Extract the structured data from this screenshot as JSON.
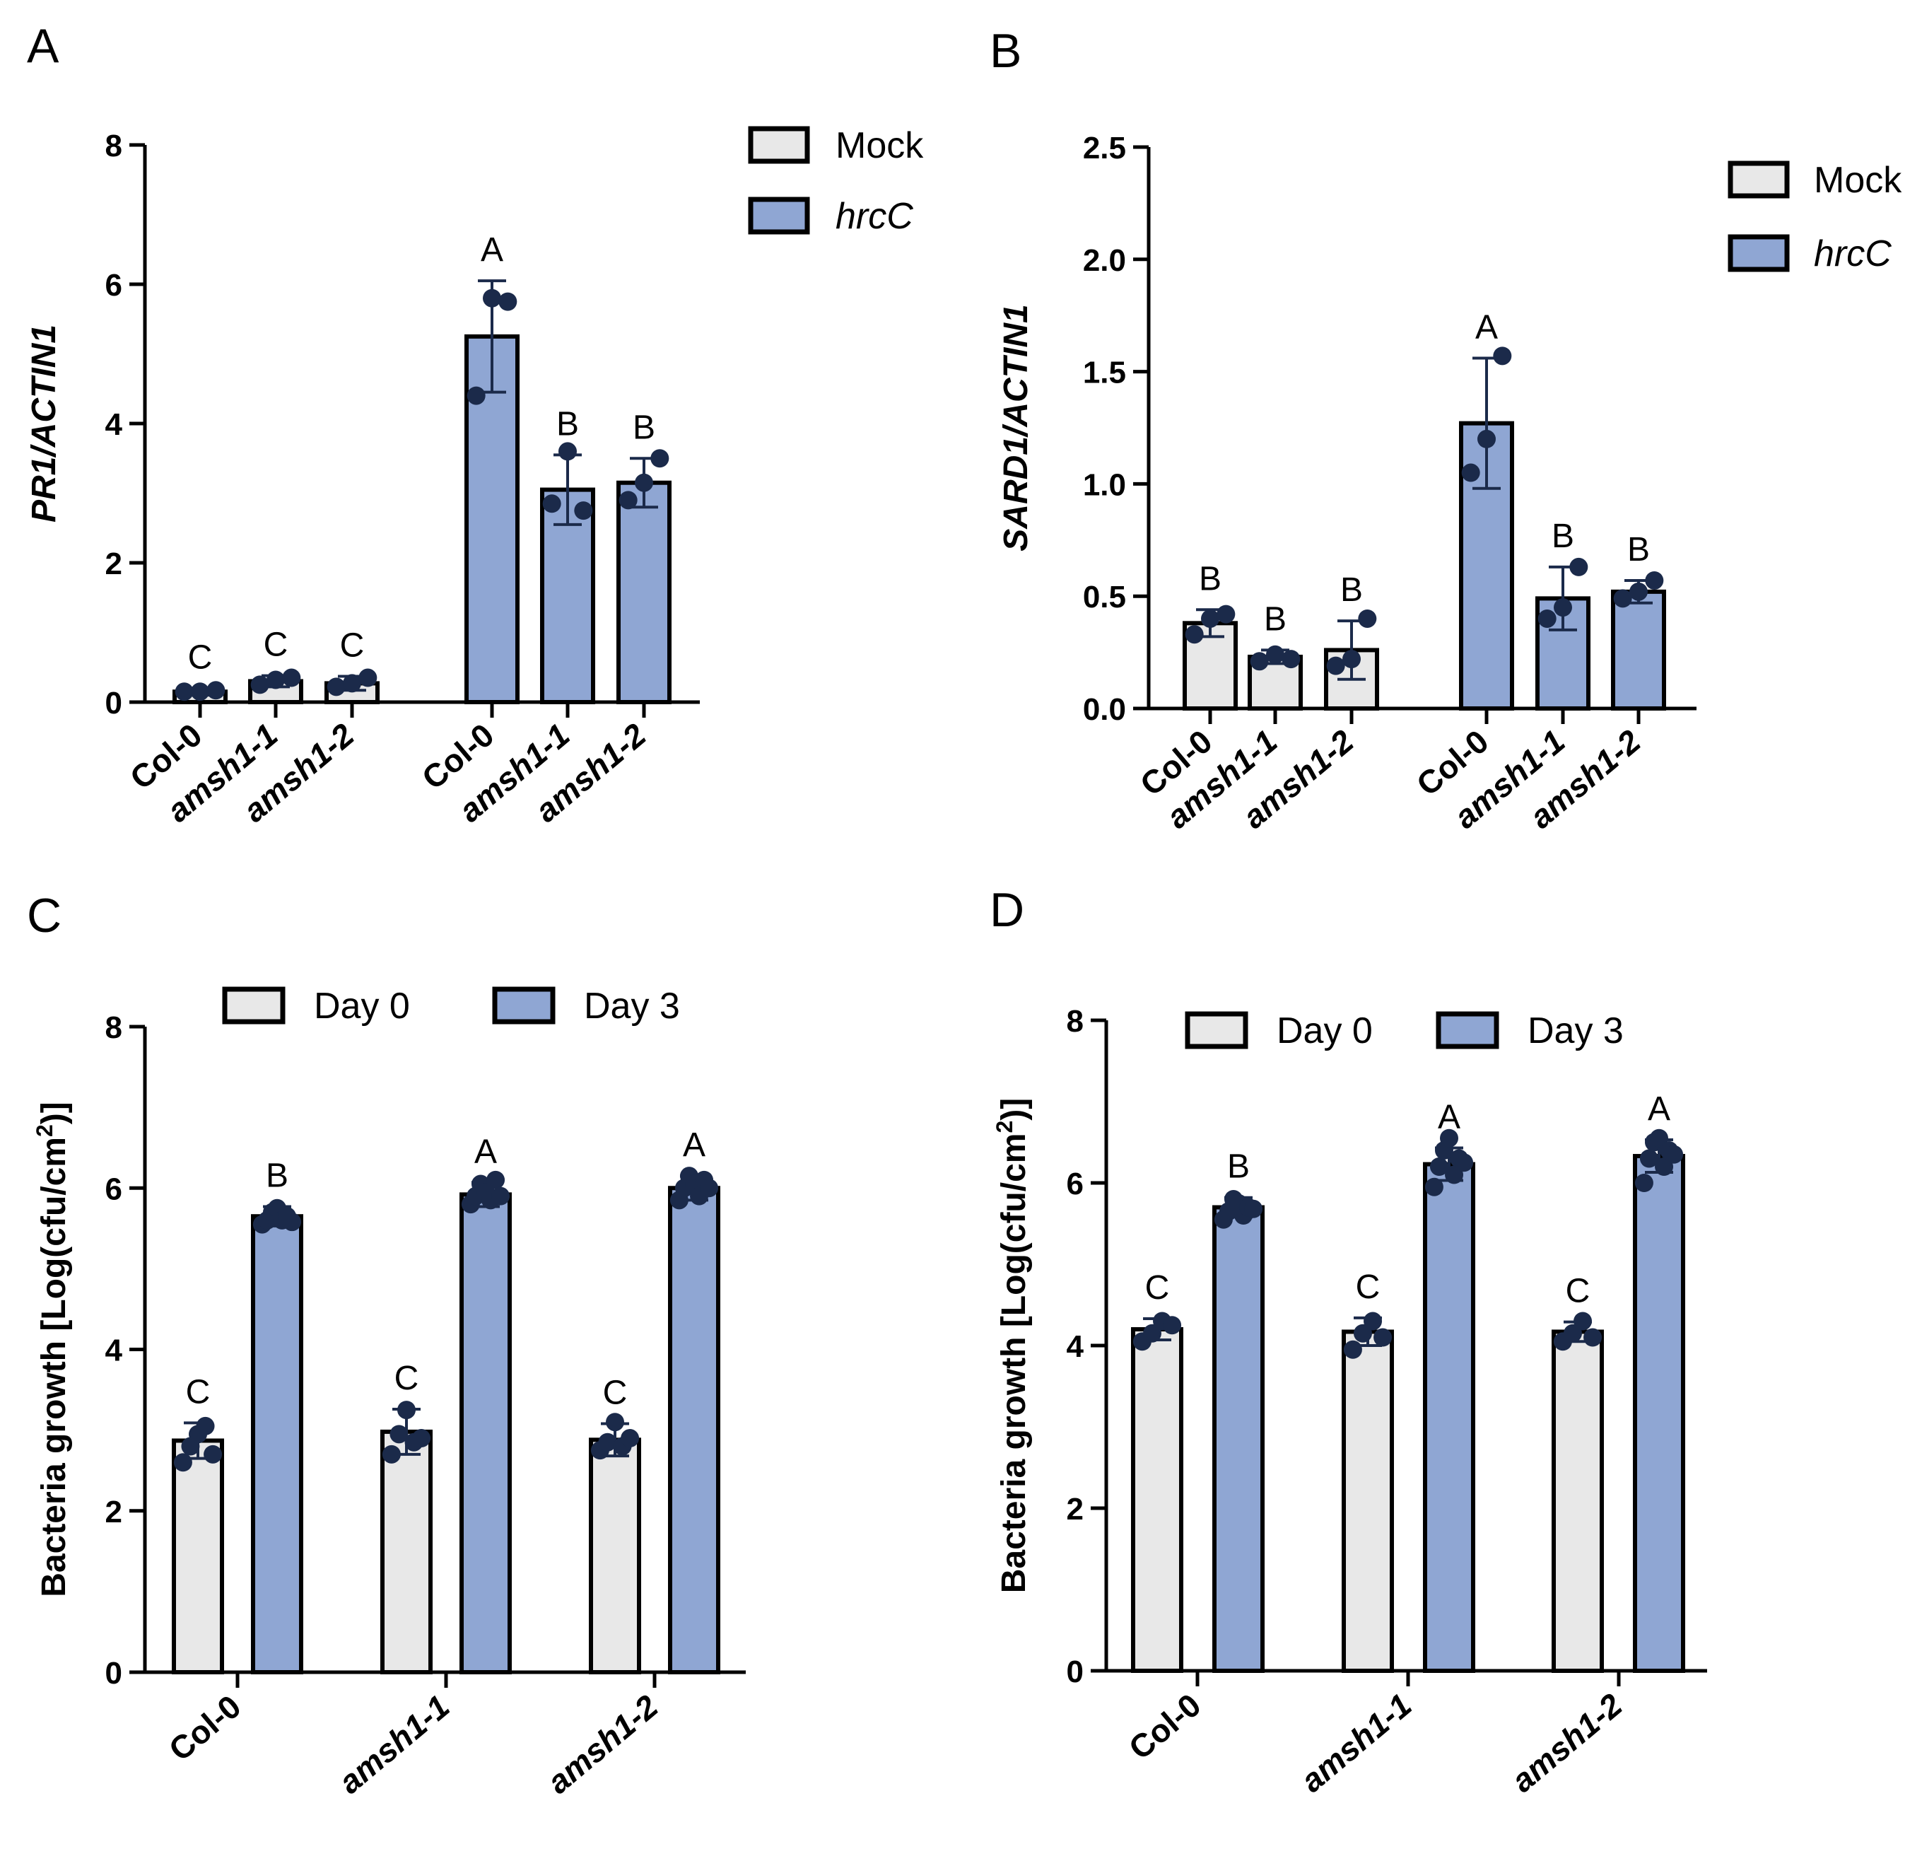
{
  "colors": {
    "mock": "#e8e8e8",
    "treat": "#8fa6d3",
    "dot": "#1b2a4a",
    "axis": "#000000"
  },
  "chart_data": [
    {
      "type": "bar",
      "panel": "A",
      "ylabel": "PR1/ACTIN1",
      "ylabel_italic": true,
      "ylim": [
        0,
        8
      ],
      "yticks": [
        "0",
        "2",
        "4",
        "6",
        "8"
      ],
      "legend": [
        {
          "label": "Mock",
          "italic": false,
          "color": "mock"
        },
        {
          "label": "hrcC",
          "italic": true,
          "color": "treat"
        }
      ],
      "legend_position": "top-right",
      "bars": [
        {
          "label": "Col-0",
          "italic": false,
          "value": 0.15,
          "err": 0.05,
          "points": [
            0.15,
            0.15,
            0.17
          ],
          "group": "mock",
          "sig": "C"
        },
        {
          "label": "amsh1-1",
          "italic": true,
          "value": 0.3,
          "err": 0.08,
          "points": [
            0.25,
            0.32,
            0.35
          ],
          "group": "mock",
          "sig": "C"
        },
        {
          "label": "amsh1-2",
          "italic": true,
          "value": 0.27,
          "err": 0.1,
          "points": [
            0.22,
            0.27,
            0.35
          ],
          "group": "mock",
          "sig": "C"
        },
        {
          "label": "Col-0",
          "italic": false,
          "value": 5.25,
          "err": 0.8,
          "points": [
            4.4,
            5.8,
            5.75
          ],
          "group": "treat",
          "sig": "A"
        },
        {
          "label": "amsh1-1",
          "italic": true,
          "value": 3.05,
          "err": 0.5,
          "points": [
            2.85,
            3.6,
            2.75
          ],
          "group": "treat",
          "sig": "B"
        },
        {
          "label": "amsh1-2",
          "italic": true,
          "value": 3.15,
          "err": 0.35,
          "points": [
            2.9,
            3.15,
            3.5
          ],
          "group": "treat",
          "sig": "B"
        }
      ]
    },
    {
      "type": "bar",
      "panel": "B",
      "ylabel": "SARD1/ACTIN1",
      "ylabel_italic": true,
      "ylim": [
        0,
        2.5
      ],
      "yticks": [
        "0.0",
        "0.5",
        "1.0",
        "1.5",
        "2.0",
        "2.5"
      ],
      "legend": [
        {
          "label": "Mock",
          "italic": false,
          "color": "mock"
        },
        {
          "label": "hrcC",
          "italic": true,
          "color": "treat"
        }
      ],
      "legend_position": "top-right",
      "bars": [
        {
          "label": "Col-0",
          "italic": false,
          "value": 0.38,
          "err": 0.06,
          "points": [
            0.33,
            0.4,
            0.42
          ],
          "group": "mock",
          "sig": "B"
        },
        {
          "label": "amsh1-1",
          "italic": true,
          "value": 0.23,
          "err": 0.03,
          "points": [
            0.21,
            0.24,
            0.22
          ],
          "group": "mock",
          "sig": "B"
        },
        {
          "label": "amsh1-2",
          "italic": true,
          "value": 0.26,
          "err": 0.13,
          "points": [
            0.19,
            0.22,
            0.4
          ],
          "group": "mock",
          "sig": "B"
        },
        {
          "label": "Col-0",
          "italic": false,
          "value": 1.27,
          "err": 0.29,
          "points": [
            1.05,
            1.2,
            1.57
          ],
          "group": "treat",
          "sig": "A"
        },
        {
          "label": "amsh1-1",
          "italic": true,
          "value": 0.49,
          "err": 0.14,
          "points": [
            0.4,
            0.45,
            0.63
          ],
          "group": "treat",
          "sig": "B"
        },
        {
          "label": "amsh1-2",
          "italic": true,
          "value": 0.52,
          "err": 0.05,
          "points": [
            0.49,
            0.52,
            0.57
          ],
          "group": "treat",
          "sig": "B"
        }
      ]
    },
    {
      "type": "bar",
      "panel": "C",
      "ylabel": "Bacteria growth [Log(cfu/cm",
      "ylabel_sup": "2",
      "ylabel_end": ")]",
      "ylabel_italic": false,
      "ylim": [
        0,
        8
      ],
      "yticks": [
        "0",
        "2",
        "4",
        "6",
        "8"
      ],
      "legend": [
        {
          "label": "Day 0",
          "italic": false,
          "color": "mock"
        },
        {
          "label": "Day 3",
          "italic": false,
          "color": "treat"
        }
      ],
      "legend_position": "top-center",
      "categories": [
        {
          "label": "Col-0",
          "italic": false
        },
        {
          "label": "amsh1-1",
          "italic": true
        },
        {
          "label": "amsh1-2",
          "italic": true
        }
      ],
      "bars": [
        {
          "value": 2.87,
          "err": 0.22,
          "points": [
            2.6,
            2.8,
            2.95,
            3.05,
            2.7
          ],
          "group": "mock",
          "sig": "C"
        },
        {
          "value": 5.65,
          "err": 0.12,
          "points": [
            5.55,
            5.6,
            5.7,
            5.75,
            5.6,
            5.65,
            5.58
          ],
          "group": "treat",
          "sig": "B"
        },
        {
          "value": 2.98,
          "err": 0.28,
          "points": [
            2.7,
            2.95,
            3.25,
            2.85,
            2.9
          ],
          "group": "mock",
          "sig": "C"
        },
        {
          "value": 5.92,
          "err": 0.15,
          "points": [
            5.8,
            5.9,
            6.05,
            5.95,
            5.85,
            6.1,
            5.9
          ],
          "group": "treat",
          "sig": "A"
        },
        {
          "value": 2.88,
          "err": 0.2,
          "points": [
            2.75,
            2.85,
            3.1,
            2.8,
            2.9
          ],
          "group": "mock",
          "sig": "C"
        },
        {
          "value": 6.0,
          "err": 0.15,
          "points": [
            5.85,
            6.0,
            6.15,
            6.05,
            5.9,
            6.1,
            6.0
          ],
          "group": "treat",
          "sig": "A"
        }
      ]
    },
    {
      "type": "bar",
      "panel": "D",
      "ylabel": "Bacteria growth [Log(cfu/cm",
      "ylabel_sup": "2",
      "ylabel_end": ")]",
      "ylabel_italic": false,
      "ylim": [
        0,
        8
      ],
      "yticks": [
        "0",
        "2",
        "4",
        "6",
        "8"
      ],
      "legend": [
        {
          "label": "Day 0",
          "italic": false,
          "color": "mock"
        },
        {
          "label": "Day 3",
          "italic": false,
          "color": "treat"
        }
      ],
      "legend_position": "top-center",
      "categories": [
        {
          "label": "Col-0",
          "italic": false
        },
        {
          "label": "amsh1-1",
          "italic": true
        },
        {
          "label": "amsh1-2",
          "italic": true
        }
      ],
      "bars": [
        {
          "value": 4.2,
          "err": 0.13,
          "points": [
            4.05,
            4.15,
            4.3,
            4.25
          ],
          "group": "mock",
          "sig": "C"
        },
        {
          "value": 5.7,
          "err": 0.12,
          "points": [
            5.55,
            5.65,
            5.8,
            5.75,
            5.6,
            5.7,
            5.68
          ],
          "group": "treat",
          "sig": "B"
        },
        {
          "value": 4.17,
          "err": 0.17,
          "points": [
            3.95,
            4.15,
            4.3,
            4.1
          ],
          "group": "mock",
          "sig": "C"
        },
        {
          "value": 6.23,
          "err": 0.2,
          "points": [
            5.95,
            6.2,
            6.4,
            6.55,
            6.1,
            6.3,
            6.25
          ],
          "group": "treat",
          "sig": "A"
        },
        {
          "value": 4.17,
          "err": 0.12,
          "points": [
            4.05,
            4.15,
            4.3,
            4.1
          ],
          "group": "mock",
          "sig": "C"
        },
        {
          "value": 6.33,
          "err": 0.2,
          "points": [
            6.0,
            6.3,
            6.5,
            6.55,
            6.2,
            6.4,
            6.35
          ],
          "group": "treat",
          "sig": "A"
        }
      ]
    }
  ]
}
